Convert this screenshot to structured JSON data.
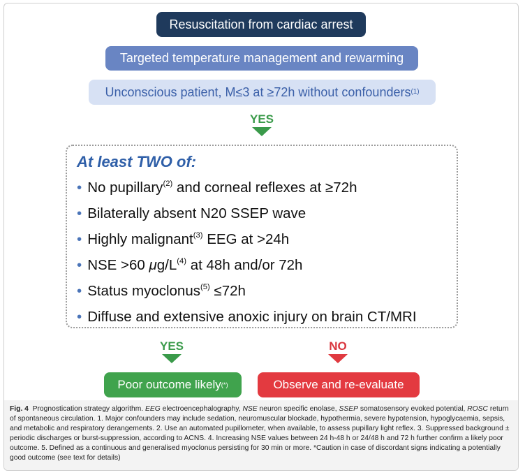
{
  "boxes": {
    "start": [
      {
        "text": "Resuscitation from cardiac arrest"
      }
    ],
    "ttm": [
      {
        "text": "Targeted temperature management and rewarming"
      }
    ],
    "patient": [
      {
        "text": "Unconscious patient, M≤3 at ≥72h without confounders"
      },
      {
        "sup": "(1)"
      }
    ]
  },
  "yes_top": "YES",
  "criteria": {
    "heading": "At least TWO of:",
    "items": [
      [
        {
          "text": "No pupillary"
        },
        {
          "sup": "(2)"
        },
        {
          "text": " and corneal reflexes at ≥72h"
        }
      ],
      [
        {
          "text": "Bilaterally absent N20 SSEP wave"
        }
      ],
      [
        {
          "text": "Highly malignant"
        },
        {
          "sup": "(3)"
        },
        {
          "text": " EEG at >24h"
        }
      ],
      [
        {
          "text": "NSE >60 "
        },
        {
          "italic": "μ"
        },
        {
          "text": "g/L"
        },
        {
          "sup": "(4)"
        },
        {
          "text": " at 48h and/or 72h"
        }
      ],
      [
        {
          "text": "Status myoclonus"
        },
        {
          "sup": "(5)"
        },
        {
          "text": " ≤72h"
        }
      ],
      [
        {
          "text": "Diffuse and extensive anoxic injury on brain CT/MRI"
        }
      ]
    ]
  },
  "branches": {
    "yes": {
      "label": "YES",
      "outcome": [
        {
          "text": "Poor outcome likely"
        },
        {
          "sup": "(*)"
        }
      ]
    },
    "no": {
      "label": "NO",
      "outcome": [
        {
          "text": "Observe and re-evaluate"
        }
      ]
    }
  },
  "caption": [
    {
      "bold": "Fig. 4"
    },
    {
      "text": "  Prognostication strategy algorithm. "
    },
    {
      "italic": "EEG"
    },
    {
      "text": " electroencephalography, "
    },
    {
      "italic": "NSE"
    },
    {
      "text": " neuron specific enolase, "
    },
    {
      "italic": "SSEP"
    },
    {
      "text": " somatosensory evoked potential, "
    },
    {
      "italic": "ROSC"
    },
    {
      "text": " return of spontaneous circulation. 1. Major confounders may include sedation, neuromuscular blockade, hypothermia, severe hypotension, hypoglycaemia, sepsis, and metabolic and respiratory derangements. 2. Use an automated pupillometer, when available, to assess pupillary light reflex. 3. Suppressed background ± periodic discharges or burst-suppression, according to ACNS. 4. Increasing NSE values between 24 h-48 h or 24/48 h and 72 h further confirm a likely poor outcome. 5. Defined as a continuous and generalised myoclonus persisting for 30 min or more. *Caution in case of discordant signs indicating a potentially good outcome (see text for details)"
    }
  ]
}
